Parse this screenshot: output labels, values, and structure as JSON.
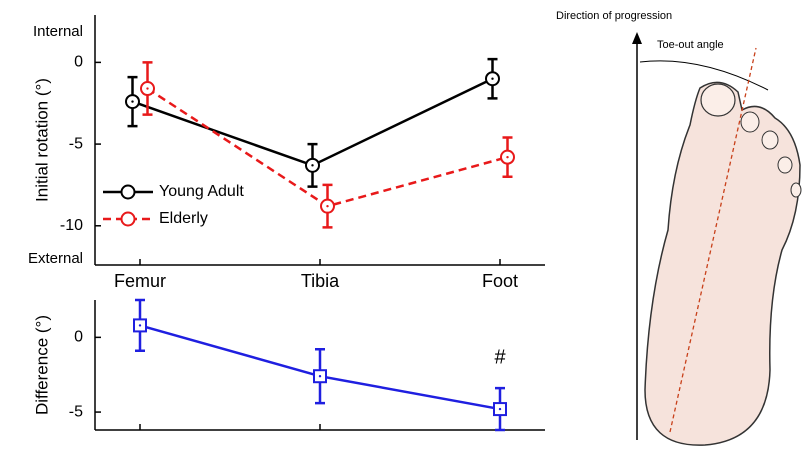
{
  "chart_data": [
    {
      "type": "line",
      "ylabel": "Initial rotation (°)",
      "categories": [
        "Femur",
        "Tibia",
        "Foot"
      ],
      "series": [
        {
          "name": "Young Adult",
          "color": "#000000",
          "linestyle": "solid",
          "marker": "circle",
          "values": [
            -2.4,
            -6.3,
            -1.0
          ],
          "errors": [
            1.5,
            1.3,
            1.2
          ]
        },
        {
          "name": "Elderly",
          "color": "#e8191a",
          "linestyle": "dashed",
          "marker": "circle",
          "values": [
            -1.6,
            -8.8,
            -5.8
          ],
          "errors": [
            1.6,
            1.3,
            1.2
          ]
        }
      ],
      "ylim": [
        -12.4,
        2.9
      ],
      "yticks": [
        0,
        -5,
        -10
      ],
      "annotations": [
        "Internal",
        "External"
      ],
      "legend": "center left"
    },
    {
      "type": "line",
      "ylabel": "Difference (°)",
      "categories": [
        null,
        null,
        null
      ],
      "series": [
        {
          "name": null,
          "color": "#1f1fe0",
          "linestyle": "solid",
          "marker": "square",
          "values": [
            0.8,
            -2.6,
            -4.8
          ],
          "errors": [
            1.7,
            1.8,
            1.4
          ]
        }
      ],
      "ylim": [
        -6.2,
        2.5
      ],
      "yticks": [
        0,
        -5
      ],
      "annotation": "#"
    }
  ],
  "illustration": {
    "direction_label": "Direction of progression",
    "angle_label": "Toe-out angle"
  }
}
